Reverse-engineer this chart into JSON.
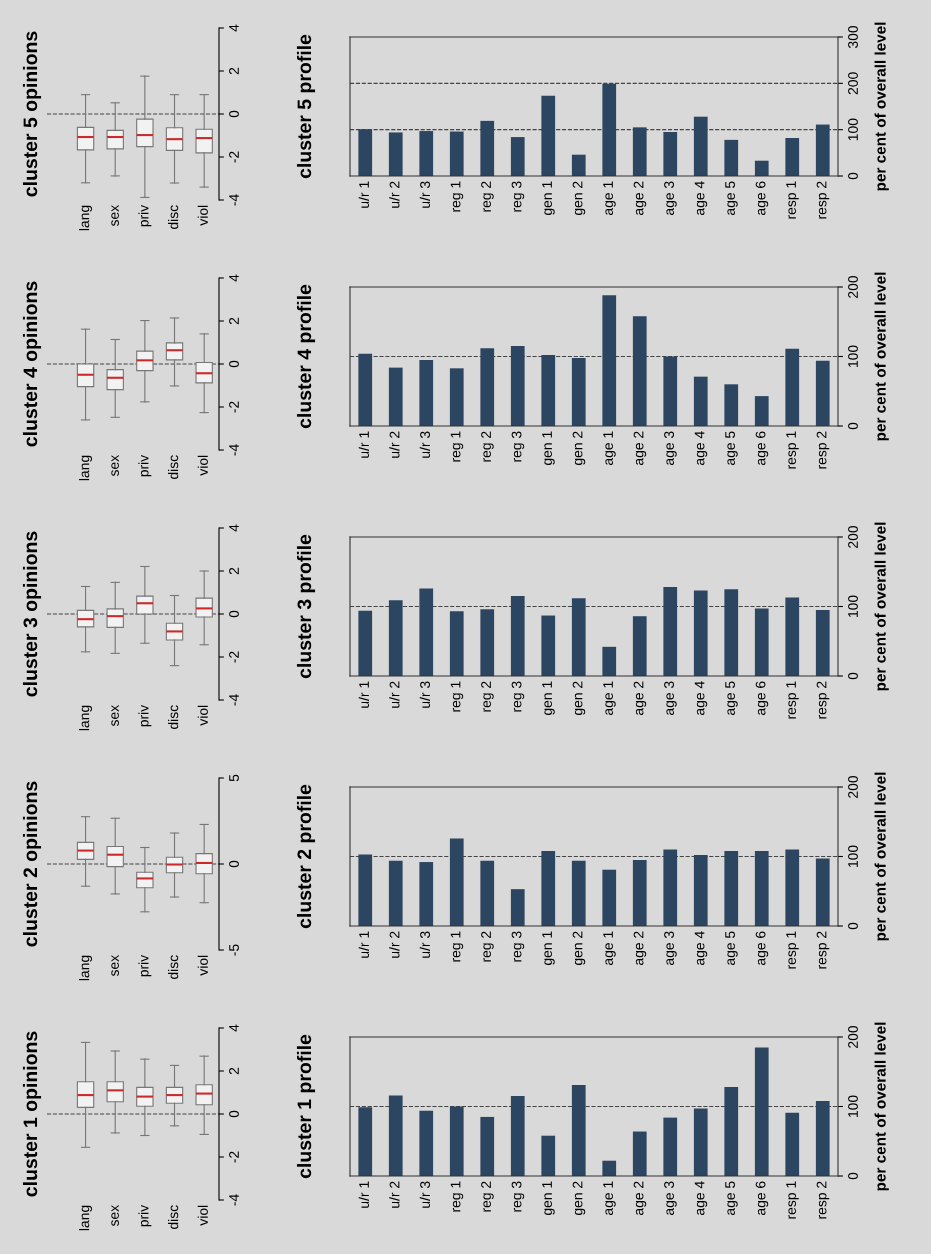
{
  "chart_data": [
    {
      "type": "box",
      "title": "cluster 5 opinions",
      "categories": [
        "lang",
        "sex",
        "priv",
        "disc",
        "viol"
      ],
      "ylim": [
        -4,
        4
      ],
      "yticks": [
        -4,
        -2,
        0,
        2,
        4
      ],
      "ref_lines": [
        {
          "axis": "y",
          "value": 0,
          "line_style": "dashed"
        }
      ],
      "boxes": [
        {
          "low": -3.2,
          "q1": -1.67,
          "median": -1.07,
          "q3": -0.62,
          "high": 0.9
        },
        {
          "low": -2.88,
          "q1": -1.62,
          "median": -1.07,
          "q3": -0.76,
          "high": 0.52
        },
        {
          "low": -3.88,
          "q1": -1.52,
          "median": -0.98,
          "q3": -0.24,
          "high": 1.76
        },
        {
          "low": -3.21,
          "q1": -1.69,
          "median": -1.17,
          "q3": -0.64,
          "high": 0.9
        },
        {
          "low": -3.4,
          "q1": -1.81,
          "median": -1.12,
          "q3": -0.71,
          "high": 0.9
        }
      ]
    },
    {
      "type": "bar",
      "title": "cluster 5 profile",
      "ylabel": "per cent of overall level",
      "color": "#2c4560",
      "categories": [
        "u/r 1",
        "u/r 2",
        "u/r 3",
        "reg 1",
        "reg 2",
        "reg 3",
        "gen 1",
        "gen 2",
        "age 1",
        "age 2",
        "age 3",
        "age 4",
        "age 5",
        "age 6",
        "resp 1",
        "resp 2"
      ],
      "ylim": [
        0,
        300
      ],
      "yticks": [
        0,
        100,
        200,
        300
      ],
      "ref_lines": [
        {
          "axis": "y",
          "value": 100,
          "line_style": "dashed"
        },
        {
          "axis": "y",
          "value": 200,
          "line_style": "dashed"
        }
      ],
      "values": [
        101,
        94,
        97,
        96,
        119,
        84,
        173,
        46,
        199,
        105,
        95,
        128,
        78,
        33,
        82,
        111
      ]
    },
    {
      "type": "box",
      "title": "cluster 4 opinions",
      "categories": [
        "lang",
        "sex",
        "priv",
        "disc",
        "viol"
      ],
      "ylim": [
        -4,
        4
      ],
      "yticks": [
        -4,
        -2,
        0,
        2,
        4
      ],
      "ref_lines": [
        {
          "axis": "y",
          "value": 0,
          "line_style": "dashed"
        }
      ],
      "boxes": [
        {
          "low": -2.6,
          "q1": -1.05,
          "median": -0.5,
          "q3": 0.0,
          "high": 1.62
        },
        {
          "low": -2.48,
          "q1": -1.19,
          "median": -0.64,
          "q3": -0.26,
          "high": 1.14
        },
        {
          "low": -1.76,
          "q1": -0.31,
          "median": 0.17,
          "q3": 0.6,
          "high": 2.02
        },
        {
          "low": -1.02,
          "q1": 0.19,
          "median": 0.64,
          "q3": 0.98,
          "high": 2.14
        },
        {
          "low": -2.26,
          "q1": -0.88,
          "median": -0.43,
          "q3": 0.07,
          "high": 1.4
        }
      ]
    },
    {
      "type": "bar",
      "title": "cluster 4 profile",
      "ylabel": "per cent of overall level",
      "color": "#2c4560",
      "categories": [
        "u/r 1",
        "u/r 2",
        "u/r 3",
        "reg 1",
        "reg 2",
        "reg 3",
        "gen 1",
        "gen 2",
        "age 1",
        "age 2",
        "age 3",
        "age 4",
        "age 5",
        "age 6",
        "resp 1",
        "resp 2"
      ],
      "ylim": [
        0,
        200
      ],
      "yticks": [
        0,
        100,
        200
      ],
      "ref_lines": [
        {
          "axis": "y",
          "value": 100,
          "line_style": "dashed"
        }
      ],
      "values": [
        104,
        84,
        95,
        83,
        112,
        115,
        102,
        98,
        188,
        158,
        100,
        71,
        60,
        43,
        111,
        94
      ]
    },
    {
      "type": "box",
      "title": "cluster 3 opinions",
      "categories": [
        "lang",
        "sex",
        "priv",
        "disc",
        "viol"
      ],
      "ylim": [
        -4,
        4
      ],
      "yticks": [
        -4,
        -2,
        0,
        2,
        4
      ],
      "ref_lines": [
        {
          "axis": "y",
          "value": 0,
          "line_style": "dashed"
        }
      ],
      "boxes": [
        {
          "low": -1.76,
          "q1": -0.6,
          "median": -0.24,
          "q3": 0.17,
          "high": 1.28
        },
        {
          "low": -1.83,
          "q1": -0.62,
          "median": -0.1,
          "q3": 0.24,
          "high": 1.47
        },
        {
          "low": -1.36,
          "q1": 0.0,
          "median": 0.5,
          "q3": 0.83,
          "high": 2.21
        },
        {
          "low": -2.4,
          "q1": -1.21,
          "median": -0.81,
          "q3": -0.43,
          "high": 0.86
        },
        {
          "low": -1.43,
          "q1": -0.14,
          "median": 0.26,
          "q3": 0.74,
          "high": 2.0
        }
      ]
    },
    {
      "type": "bar",
      "title": "cluster 3 profile",
      "ylabel": "per cent of overall level",
      "color": "#2c4560",
      "categories": [
        "u/r 1",
        "u/r 2",
        "u/r 3",
        "reg 1",
        "reg 2",
        "reg 3",
        "gen 1",
        "gen 2",
        "age 1",
        "age 2",
        "age 3",
        "age 4",
        "age 5",
        "age 6",
        "resp 1",
        "resp 2"
      ],
      "ylim": [
        0,
        200
      ],
      "yticks": [
        0,
        100,
        200
      ],
      "ref_lines": [
        {
          "axis": "y",
          "value": 100,
          "line_style": "dashed"
        }
      ],
      "values": [
        94,
        109,
        126,
        93,
        96,
        115,
        87,
        112,
        42,
        86,
        128,
        123,
        125,
        97,
        113,
        95
      ]
    },
    {
      "type": "box",
      "title": "cluster 2 opinions",
      "categories": [
        "lang",
        "sex",
        "priv",
        "disc",
        "viol"
      ],
      "ylim": [
        -5,
        5
      ],
      "yticks": [
        -5,
        0,
        5
      ],
      "ref_lines": [
        {
          "axis": "y",
          "value": 0,
          "line_style": "dashed"
        }
      ],
      "boxes": [
        {
          "low": -1.29,
          "q1": 0.27,
          "median": 0.78,
          "q3": 1.26,
          "high": 2.75
        },
        {
          "low": -1.74,
          "q1": -0.15,
          "median": 0.54,
          "q3": 1.02,
          "high": 2.66
        },
        {
          "low": -2.78,
          "q1": -1.38,
          "median": -0.84,
          "q3": -0.48,
          "high": 0.96
        },
        {
          "low": -1.92,
          "q1": -0.51,
          "median": -0.03,
          "q3": 0.39,
          "high": 1.8
        },
        {
          "low": -2.25,
          "q1": -0.57,
          "median": 0.06,
          "q3": 0.6,
          "high": 2.3
        }
      ]
    },
    {
      "type": "bar",
      "title": "cluster 2 profile",
      "ylabel": "per cent of overall level",
      "color": "#2c4560",
      "categories": [
        "u/r 1",
        "u/r 2",
        "u/r 3",
        "reg 1",
        "reg 2",
        "reg 3",
        "gen 1",
        "gen 2",
        "age 1",
        "age 2",
        "age 3",
        "age 4",
        "age 5",
        "age 6",
        "resp 1",
        "resp 2"
      ],
      "ylim": [
        0,
        200
      ],
      "yticks": [
        0,
        100,
        200
      ],
      "ref_lines": [
        {
          "axis": "y",
          "value": 100,
          "line_style": "dashed"
        }
      ],
      "values": [
        103,
        94,
        92,
        126,
        94,
        53,
        108,
        94,
        81,
        95,
        110,
        102,
        108,
        108,
        110,
        97
      ]
    },
    {
      "type": "box",
      "title": "cluster 1 opinions",
      "categories": [
        "lang",
        "sex",
        "priv",
        "disc",
        "viol"
      ],
      "ylim": [
        -4,
        4
      ],
      "yticks": [
        -4,
        -2,
        0,
        2,
        4
      ],
      "ref_lines": [
        {
          "axis": "y",
          "value": 0,
          "line_style": "dashed"
        }
      ],
      "boxes": [
        {
          "low": -1.55,
          "q1": 0.31,
          "median": 0.88,
          "q3": 1.5,
          "high": 3.33
        },
        {
          "low": -0.88,
          "q1": 0.57,
          "median": 1.1,
          "q3": 1.5,
          "high": 2.93
        },
        {
          "low": -1.0,
          "q1": 0.36,
          "median": 0.81,
          "q3": 1.24,
          "high": 2.55
        },
        {
          "low": -0.55,
          "q1": 0.5,
          "median": 0.88,
          "q3": 1.24,
          "high": 2.26
        },
        {
          "low": -0.95,
          "q1": 0.43,
          "median": 0.95,
          "q3": 1.36,
          "high": 2.69
        }
      ]
    },
    {
      "type": "bar",
      "title": "cluster 1 profile",
      "ylabel": "per cent of overall level",
      "color": "#2c4560",
      "categories": [
        "u/r 1",
        "u/r 2",
        "u/r 3",
        "reg 1",
        "reg 2",
        "reg 3",
        "gen 1",
        "gen 2",
        "age 1",
        "age 2",
        "age 3",
        "age 4",
        "age 5",
        "age 6",
        "resp 1",
        "resp 2"
      ],
      "ylim": [
        0,
        200
      ],
      "yticks": [
        0,
        100,
        200
      ],
      "ref_lines": [
        {
          "axis": "y",
          "value": 100,
          "line_style": "dashed"
        }
      ],
      "values": [
        99,
        116,
        94,
        100,
        85,
        115,
        58,
        131,
        22,
        64,
        84,
        97,
        128,
        185,
        91,
        108
      ]
    }
  ]
}
